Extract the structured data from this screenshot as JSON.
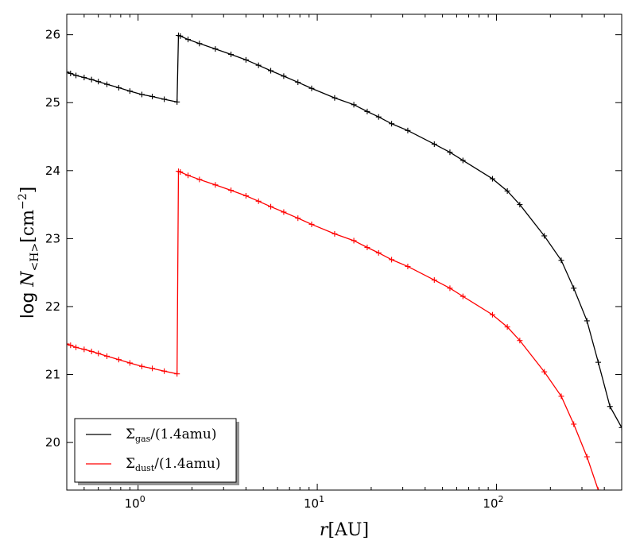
{
  "chart_data": {
    "type": "line",
    "xscale": "log",
    "xlim": [
      0.4,
      500
    ],
    "ylim": [
      19.3,
      26.3
    ],
    "xlabel": "r[AU]",
    "ylabel": "log N<H>[cm^-2]",
    "grid": false,
    "legend_position": "lower-left",
    "x_ticks": [
      {
        "value": 1,
        "label": "10",
        "exp": "0"
      },
      {
        "value": 10,
        "label": "10",
        "exp": "1"
      },
      {
        "value": 100,
        "label": "10",
        "exp": "2"
      }
    ],
    "y_ticks": [
      20,
      21,
      22,
      23,
      24,
      25,
      26
    ],
    "series": [
      {
        "name": "Σgas/(1.4amu)",
        "color": "#000000",
        "x": [
          0.4,
          0.42,
          0.45,
          0.5,
          0.55,
          0.6,
          0.67,
          0.78,
          0.9,
          1.05,
          1.2,
          1.4,
          1.65,
          1.68,
          1.72,
          1.9,
          2.2,
          2.7,
          3.3,
          4.0,
          4.7,
          5.5,
          6.5,
          7.8,
          9.3,
          12.5,
          16,
          19,
          22,
          26,
          32,
          45,
          55,
          65,
          95,
          115,
          135,
          185,
          230,
          270,
          320,
          370,
          430,
          500
        ],
        "y": [
          25.45,
          25.43,
          25.4,
          25.37,
          25.34,
          25.31,
          25.27,
          25.22,
          25.17,
          25.12,
          25.09,
          25.05,
          25.01,
          25.99,
          25.98,
          25.93,
          25.87,
          25.79,
          25.71,
          25.63,
          25.55,
          25.47,
          25.39,
          25.3,
          25.21,
          25.07,
          24.97,
          24.87,
          24.79,
          24.69,
          24.59,
          24.39,
          24.27,
          24.15,
          23.88,
          23.7,
          23.5,
          23.04,
          22.68,
          22.27,
          21.79,
          21.18,
          20.53,
          20.22
        ]
      },
      {
        "name": "Σdust/(1.4amu)",
        "color": "#ff0000",
        "x": [
          0.4,
          0.42,
          0.45,
          0.5,
          0.55,
          0.6,
          0.67,
          0.78,
          0.9,
          1.05,
          1.2,
          1.4,
          1.65,
          1.68,
          1.72,
          1.9,
          2.2,
          2.7,
          3.3,
          4.0,
          4.7,
          5.5,
          6.5,
          7.8,
          9.3,
          12.5,
          16,
          19,
          22,
          26,
          32,
          45,
          55,
          65,
          95,
          115,
          135,
          185,
          230,
          270,
          320,
          370
        ],
        "y": [
          21.45,
          21.43,
          21.4,
          21.37,
          21.34,
          21.31,
          21.27,
          21.22,
          21.17,
          21.12,
          21.09,
          21.05,
          21.01,
          23.99,
          23.98,
          23.93,
          23.87,
          23.79,
          23.71,
          23.63,
          23.55,
          23.47,
          23.39,
          23.3,
          23.21,
          23.07,
          22.97,
          22.87,
          22.79,
          22.69,
          22.59,
          22.39,
          22.27,
          22.15,
          21.88,
          21.7,
          21.5,
          21.04,
          20.68,
          20.27,
          19.79,
          19.3
        ]
      }
    ]
  }
}
